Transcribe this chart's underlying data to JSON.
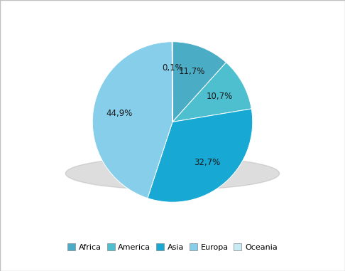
{
  "labels": [
    "Africa",
    "America",
    "Asia",
    "Europa",
    "Oceania"
  ],
  "values": [
    11.7,
    10.7,
    32.7,
    44.9,
    0.1
  ],
  "colors": [
    "#4BACC6",
    "#4DBFCF",
    "#17A8D4",
    "#87CEEB",
    "#C8EAF5"
  ],
  "autopct_labels": [
    "11,7%",
    "10,7%",
    "32,7%",
    "44,9%",
    "0,1%"
  ],
  "legend_colors": [
    "#4BACC6",
    "#4DBFCF",
    "#17A8D4",
    "#87CEEB",
    "#C8EAF5"
  ],
  "background_color": "#FFFFFF",
  "border_color": "#C0C0C0",
  "startangle": 90,
  "figure_width": 4.86,
  "figure_height": 3.81,
  "dpi": 100
}
